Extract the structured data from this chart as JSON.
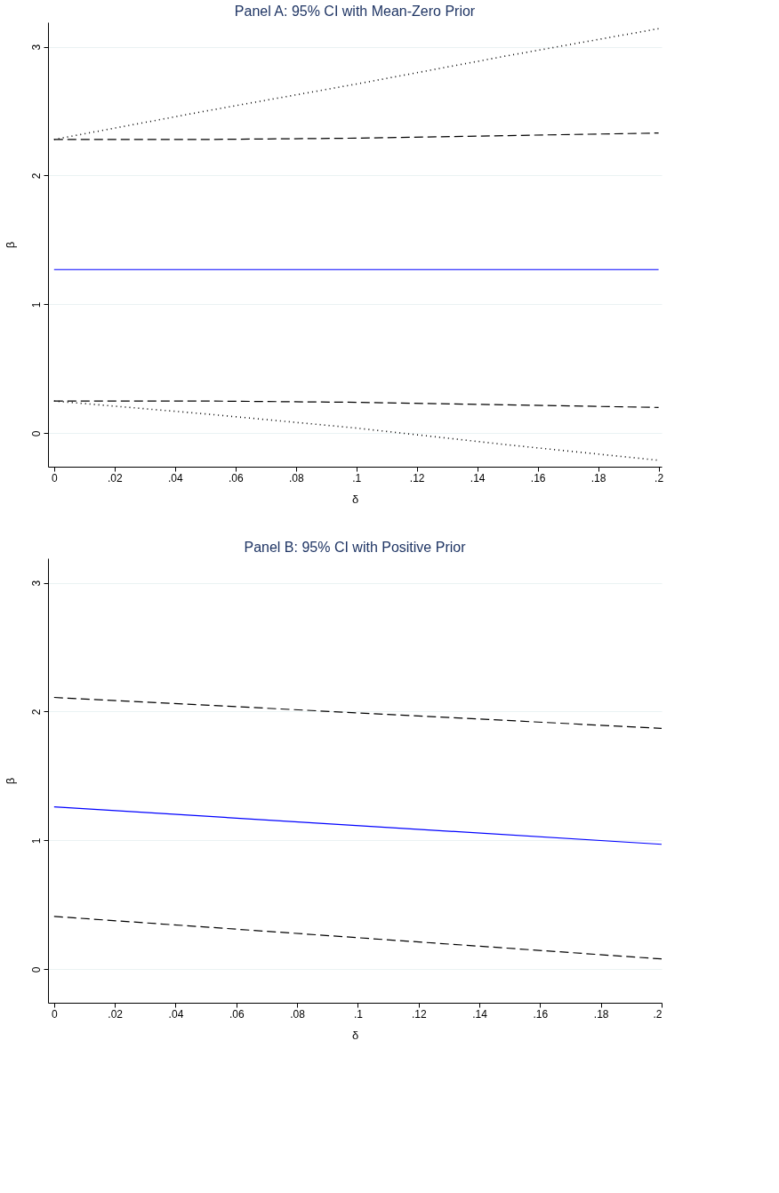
{
  "chart_data": [
    {
      "type": "line",
      "title": "Panel A: 95% CI with Mean-Zero Prior",
      "xlabel": "δ",
      "ylabel": "β",
      "xlim": [
        -0.002,
        0.201
      ],
      "ylim": [
        -0.26,
        3.19
      ],
      "xticks": [
        0,
        {
          "value": 0.02,
          "label": ".02"
        },
        {
          "value": 0.04,
          "label": ".04"
        },
        {
          "value": 0.06,
          "label": ".06"
        },
        {
          "value": 0.08,
          "label": ".08"
        },
        {
          "value": 0.1,
          "label": ".1"
        },
        {
          "value": 0.12,
          "label": ".12"
        },
        {
          "value": 0.14,
          "label": ".14"
        },
        {
          "value": 0.16,
          "label": ".16"
        },
        {
          "value": 0.18,
          "label": ".18"
        },
        {
          "value": 0.2,
          "label": ".2"
        }
      ],
      "yticks": [
        0,
        1,
        2,
        3
      ],
      "grid": "y",
      "series": [
        {
          "color": "#000000",
          "line_style": "dotted",
          "x": [
            0,
            0.05,
            0.1,
            0.15,
            0.2
          ],
          "values": [
            2.28,
            2.5,
            2.71,
            2.93,
            3.14
          ]
        },
        {
          "color": "#000000",
          "line_style": "dashed",
          "x": [
            0,
            0.05,
            0.1,
            0.15,
            0.2
          ],
          "values": [
            2.28,
            2.28,
            2.29,
            2.31,
            2.33
          ]
        },
        {
          "color": "#0000ff",
          "line_style": "solid",
          "x": [
            0,
            0.2
          ],
          "values": [
            1.27,
            1.27
          ]
        },
        {
          "color": "#000000",
          "line_style": "dashed",
          "x": [
            0,
            0.05,
            0.1,
            0.15,
            0.2
          ],
          "values": [
            0.25,
            0.25,
            0.24,
            0.22,
            0.2
          ]
        },
        {
          "color": "#000000",
          "line_style": "dotted",
          "x": [
            0,
            0.05,
            0.1,
            0.15,
            0.2
          ],
          "values": [
            0.25,
            0.15,
            0.04,
            -0.09,
            -0.21
          ]
        }
      ]
    },
    {
      "type": "line",
      "title": "Panel B: 95% CI with Positive Prior",
      "xlabel": "δ",
      "ylabel": "β",
      "xlim": [
        -0.002,
        0.2
      ],
      "ylim": [
        -0.26,
        3.19
      ],
      "xticks": [
        0,
        {
          "value": 0.02,
          "label": ".02"
        },
        {
          "value": 0.04,
          "label": ".04"
        },
        {
          "value": 0.06,
          "label": ".06"
        },
        {
          "value": 0.08,
          "label": ".08"
        },
        {
          "value": 0.1,
          "label": ".1"
        },
        {
          "value": 0.12,
          "label": ".12"
        },
        {
          "value": 0.14,
          "label": ".14"
        },
        {
          "value": 0.16,
          "label": ".16"
        },
        {
          "value": 0.18,
          "label": ".18"
        },
        {
          "value": 0.2,
          "label": ".2"
        }
      ],
      "yticks": [
        0,
        1,
        2,
        3
      ],
      "grid": "y",
      "series": [
        {
          "color": "#000000",
          "line_style": "dashed",
          "x": [
            0,
            0.2
          ],
          "values": [
            2.11,
            1.87
          ]
        },
        {
          "color": "#0000ff",
          "line_style": "solid",
          "x": [
            0,
            0.2
          ],
          "values": [
            1.26,
            0.97
          ]
        },
        {
          "color": "#000000",
          "line_style": "dashed",
          "x": [
            0,
            0.2
          ],
          "values": [
            0.41,
            0.08
          ]
        }
      ]
    }
  ]
}
